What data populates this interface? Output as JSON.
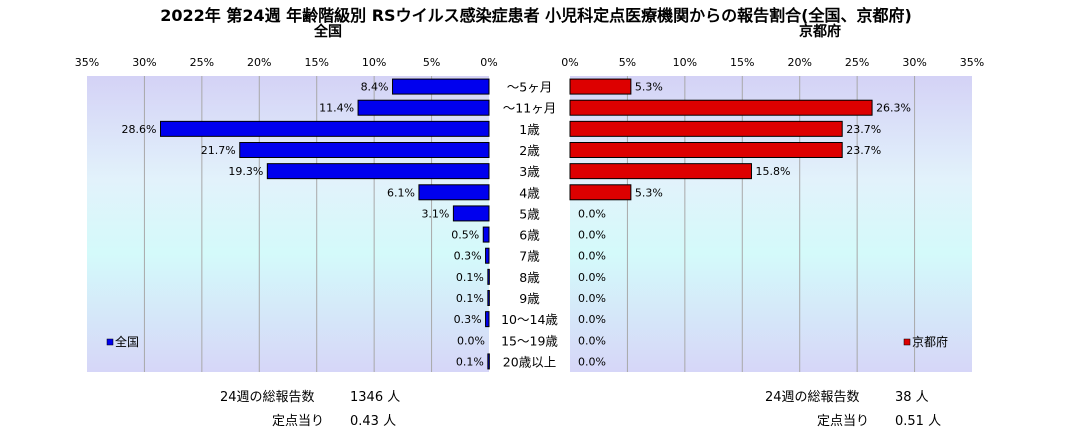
{
  "chart_data": {
    "type": "bar",
    "title": "2022年 第24週 年齢階級別 RSウイルス感染症患者 小児科定点医療機関からの報告割合(全国、京都府)",
    "categories": [
      "～5ヶ月",
      "～11ヶ月",
      "1歳",
      "2歳",
      "3歳",
      "4歳",
      "5歳",
      "6歳",
      "7歳",
      "8歳",
      "9歳",
      "10～14歳",
      "15～19歳",
      "20歳以上"
    ],
    "xlim": [
      0,
      35
    ],
    "x_ticks": [
      "35%",
      "30%",
      "25%",
      "20%",
      "15%",
      "10%",
      "5%",
      "0%"
    ],
    "x_ticks_right": [
      "0%",
      "5%",
      "10%",
      "15%",
      "20%",
      "25%",
      "30%",
      "35%"
    ],
    "grid": true,
    "panels": [
      {
        "name": "全国",
        "legend": "全国",
        "legend_position": "bottom-left",
        "color": "#0000ee",
        "values": [
          8.4,
          11.4,
          28.6,
          21.7,
          19.3,
          6.1,
          3.1,
          0.5,
          0.3,
          0.1,
          0.1,
          0.3,
          0.0,
          0.1
        ],
        "labels": [
          "8.4%",
          "11.4%",
          "28.6%",
          "21.7%",
          "19.3%",
          "6.1%",
          "3.1%",
          "0.5%",
          "0.3%",
          "0.1%",
          "0.1%",
          "0.3%",
          "0.0%",
          "0.1%"
        ]
      },
      {
        "name": "京都府",
        "legend": "京都府",
        "legend_position": "bottom-right",
        "color": "#dd0000",
        "values": [
          5.3,
          26.3,
          23.7,
          23.7,
          15.8,
          5.3,
          0.0,
          0.0,
          0.0,
          0.0,
          0.0,
          0.0,
          0.0,
          0.0
        ],
        "labels": [
          "5.3%",
          "26.3%",
          "23.7%",
          "23.7%",
          "15.8%",
          "5.3%",
          "0.0%",
          "0.0%",
          "0.0%",
          "0.0%",
          "0.0%",
          "0.0%",
          "0.0%",
          "0.0%"
        ]
      }
    ]
  },
  "stats": {
    "national": {
      "total_label": "24週の総報告数",
      "total_value": "1346 人",
      "per_label": "定点当り",
      "per_value": "0.43 人"
    },
    "kyoto": {
      "total_label": "24週の総報告数",
      "total_value": "38 人",
      "per_label": "定点当り",
      "per_value": "0.51 人"
    }
  }
}
